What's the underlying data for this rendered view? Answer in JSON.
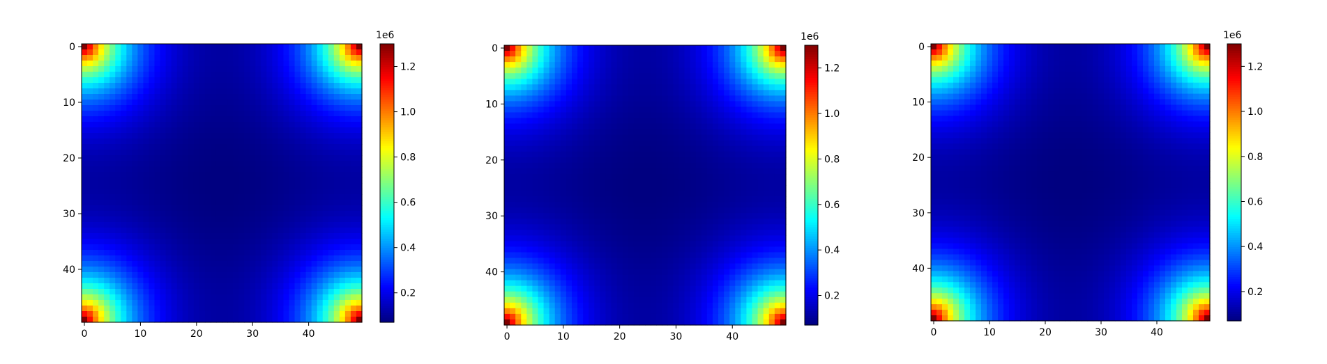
{
  "chart_data": [
    {
      "type": "heatmap",
      "title": "",
      "xlabel": "",
      "ylabel": "",
      "grid_size": [
        50,
        50
      ],
      "x_ticks": [
        0,
        10,
        20,
        30,
        40
      ],
      "y_ticks": [
        0,
        10,
        20,
        30,
        40
      ],
      "colormap": "jet",
      "value_range": [
        70000,
        1300000
      ],
      "corner_peak": 1300000,
      "center_minimum": 70000,
      "pattern": "high values in all four corners decaying toward a minimum at the center",
      "colorbar": {
        "ticks": [
          0.2,
          0.4,
          0.6,
          0.8,
          1.0,
          1.2
        ],
        "tick_labels": [
          "0.2",
          "0.4",
          "0.6",
          "0.8",
          "1.0",
          "1.2"
        ],
        "range": [
          0.07,
          1.3
        ],
        "offset_label": "1e6"
      }
    },
    {
      "type": "heatmap",
      "title": "",
      "xlabel": "",
      "ylabel": "",
      "grid_size": [
        50,
        50
      ],
      "x_ticks": [
        0,
        10,
        20,
        30,
        40
      ],
      "y_ticks": [
        0,
        10,
        20,
        30,
        40
      ],
      "colormap": "jet",
      "value_range": [
        70000,
        1300000
      ],
      "corner_peak": 1300000,
      "center_minimum": 70000,
      "pattern": "high values in all four corners decaying toward a minimum at the center",
      "colorbar": {
        "ticks": [
          0.2,
          0.4,
          0.6,
          0.8,
          1.0,
          1.2
        ],
        "tick_labels": [
          "0.2",
          "0.4",
          "0.6",
          "0.8",
          "1.0",
          "1.2"
        ],
        "range": [
          0.07,
          1.3
        ],
        "offset_label": "1e6"
      }
    },
    {
      "type": "heatmap",
      "title": "",
      "xlabel": "",
      "ylabel": "",
      "grid_size": [
        50,
        50
      ],
      "x_ticks": [
        0,
        10,
        20,
        30,
        40
      ],
      "y_ticks": [
        0,
        10,
        20,
        30,
        40
      ],
      "colormap": "jet",
      "value_range": [
        70000,
        1300000
      ],
      "corner_peak": 1300000,
      "center_minimum": 70000,
      "pattern": "high values in all four corners decaying toward a minimum at the center",
      "colorbar": {
        "ticks": [
          0.2,
          0.4,
          0.6,
          0.8,
          1.0,
          1.2
        ],
        "tick_labels": [
          "0.2",
          "0.4",
          "0.6",
          "0.8",
          "1.0",
          "1.2"
        ],
        "range": [
          0.07,
          1.3
        ],
        "offset_label": "1e6"
      }
    }
  ]
}
